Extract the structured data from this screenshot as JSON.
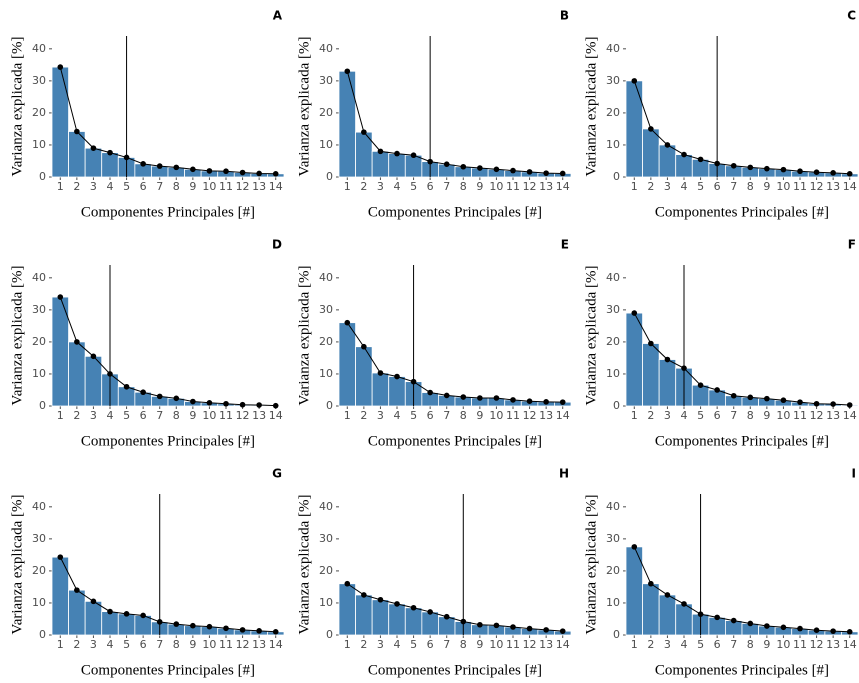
{
  "chart_data": [
    {
      "type": "bar",
      "title": "A",
      "xlabel": "Componentes Principales [#]",
      "ylabel": "Varianza explicada [%]",
      "x": [
        1,
        2,
        3,
        4,
        5,
        6,
        7,
        8,
        9,
        10,
        11,
        12,
        13,
        14
      ],
      "values": [
        34.3,
        14.2,
        9,
        7.6,
        6.1,
        4.1,
        3.4,
        3.0,
        2.4,
        1.9,
        1.8,
        1.4,
        1.1,
        1.0
      ],
      "color": "#4682b4",
      "xlim": [
        0.5,
        14.5
      ],
      "xticks": [
        1,
        2,
        3,
        4,
        5,
        6,
        7,
        8,
        9,
        10,
        11,
        12,
        13,
        14
      ],
      "ylim": [
        0,
        44
      ],
      "yticks": [
        0,
        10,
        20,
        30,
        40
      ],
      "vline": 5
    },
    {
      "type": "bar",
      "title": "B",
      "xlabel": "Componentes Principales [#]",
      "ylabel": "Varianza explicada [%]",
      "x": [
        1,
        2,
        3,
        4,
        5,
        6,
        7,
        8,
        9,
        10,
        11,
        12,
        13,
        14
      ],
      "values": [
        33,
        14,
        8,
        7.3,
        6.8,
        4.8,
        4.0,
        3.2,
        2.8,
        2.4,
        2.0,
        1.6,
        1.2,
        1.1
      ],
      "color": "#4682b4",
      "xlim": [
        0.5,
        14.5
      ],
      "xticks": [
        1,
        2,
        3,
        4,
        5,
        6,
        7,
        8,
        9,
        10,
        11,
        12,
        13,
        14
      ],
      "ylim": [
        0,
        44
      ],
      "yticks": [
        0,
        10,
        20,
        30,
        40
      ],
      "vline": 6
    },
    {
      "type": "bar",
      "title": "C",
      "xlabel": "Componentes Principales [#]",
      "ylabel": "Varianza explicada [%]",
      "x": [
        1,
        2,
        3,
        4,
        5,
        6,
        7,
        8,
        9,
        10,
        11,
        12,
        13,
        14
      ],
      "values": [
        30,
        15,
        10,
        7,
        5.5,
        4.2,
        3.5,
        3.0,
        2.6,
        2.3,
        1.8,
        1.5,
        1.3,
        1.0
      ],
      "color": "#4682b4",
      "xlim": [
        0.5,
        14.5
      ],
      "xticks": [
        1,
        2,
        3,
        4,
        5,
        6,
        7,
        8,
        9,
        10,
        11,
        12,
        13,
        14
      ],
      "ylim": [
        0,
        44
      ],
      "yticks": [
        0,
        10,
        20,
        30,
        40
      ],
      "vline": 6
    },
    {
      "type": "bar",
      "title": "D",
      "xlabel": "Componentes Principales [#]",
      "ylabel": "Varianza explicada [%]",
      "x": [
        1,
        2,
        3,
        4,
        5,
        6,
        7,
        8,
        9,
        10,
        11,
        12,
        13,
        14
      ],
      "values": [
        34,
        20,
        15.5,
        10,
        6,
        4.3,
        3,
        2.4,
        1.4,
        1.0,
        0.7,
        0.4,
        0.3,
        0.1
      ],
      "color": "#4682b4",
      "xlim": [
        0.5,
        14.5
      ],
      "xticks": [
        1,
        2,
        3,
        4,
        5,
        6,
        7,
        8,
        9,
        10,
        11,
        12,
        13,
        14
      ],
      "ylim": [
        0,
        44
      ],
      "yticks": [
        0,
        10,
        20,
        30,
        40
      ],
      "vline": 4
    },
    {
      "type": "bar",
      "title": "E",
      "xlabel": "Componentes Principales [#]",
      "ylabel": "Varianza explicada [%]",
      "x": [
        1,
        2,
        3,
        4,
        5,
        6,
        7,
        8,
        9,
        10,
        11,
        12,
        13,
        14
      ],
      "values": [
        26,
        18.5,
        10.3,
        9.2,
        7.6,
        4.2,
        3.3,
        2.8,
        2.5,
        2.5,
        1.9,
        1.5,
        1.3,
        1.2
      ],
      "color": "#4682b4",
      "xlim": [
        0.5,
        14.5
      ],
      "xticks": [
        1,
        2,
        3,
        4,
        5,
        6,
        7,
        8,
        9,
        10,
        11,
        12,
        13,
        14
      ],
      "ylim": [
        0,
        44
      ],
      "yticks": [
        0,
        10,
        20,
        30,
        40
      ],
      "vline": 5
    },
    {
      "type": "bar",
      "title": "F",
      "xlabel": "Componentes Principales [#]",
      "ylabel": "Varianza explicada [%]",
      "x": [
        1,
        2,
        3,
        4,
        5,
        6,
        7,
        8,
        9,
        10,
        11,
        12,
        13,
        14
      ],
      "values": [
        29,
        19.5,
        14.5,
        11.8,
        6.5,
        5.0,
        3.2,
        2.7,
        2.3,
        1.8,
        1.2,
        0.7,
        0.6,
        0.3
      ],
      "color": "#4682b4",
      "xlim": [
        0.5,
        14.5
      ],
      "xticks": [
        1,
        2,
        3,
        4,
        5,
        6,
        7,
        8,
        9,
        10,
        11,
        12,
        13,
        14
      ],
      "ylim": [
        0,
        44
      ],
      "yticks": [
        0,
        10,
        20,
        30,
        40
      ],
      "vline": 4
    },
    {
      "type": "bar",
      "title": "G",
      "xlabel": "Componentes Principales [#]",
      "ylabel": "Varianza explicada [%]",
      "x": [
        1,
        2,
        3,
        4,
        5,
        6,
        7,
        8,
        9,
        10,
        11,
        12,
        13,
        14
      ],
      "values": [
        24.3,
        14,
        10.5,
        7.3,
        6.6,
        6.1,
        4.1,
        3.4,
        2.9,
        2.6,
        2.1,
        1.6,
        1.3,
        1.0
      ],
      "color": "#4682b4",
      "xlim": [
        0.5,
        14.5
      ],
      "xticks": [
        1,
        2,
        3,
        4,
        5,
        6,
        7,
        8,
        9,
        10,
        11,
        12,
        13,
        14
      ],
      "ylim": [
        0,
        44
      ],
      "yticks": [
        0,
        10,
        20,
        30,
        40
      ],
      "vline": 7
    },
    {
      "type": "bar",
      "title": "H",
      "xlabel": "Componentes Principales [#]",
      "ylabel": "Varianza explicada [%]",
      "x": [
        1,
        2,
        3,
        4,
        5,
        6,
        7,
        8,
        9,
        10,
        11,
        12,
        13,
        14
      ],
      "values": [
        16,
        12.5,
        11,
        9.7,
        8.5,
        7.2,
        5.7,
        4.2,
        3.2,
        3.0,
        2.5,
        2.0,
        1.6,
        1.2
      ],
      "color": "#4682b4",
      "xlim": [
        0.5,
        14.5
      ],
      "xticks": [
        1,
        2,
        3,
        4,
        5,
        6,
        7,
        8,
        9,
        10,
        11,
        12,
        13,
        14
      ],
      "ylim": [
        0,
        44
      ],
      "yticks": [
        0,
        10,
        20,
        30,
        40
      ],
      "vline": 8
    },
    {
      "type": "bar",
      "title": "I",
      "xlabel": "Componentes Principales [#]",
      "ylabel": "Varianza explicada [%]",
      "x": [
        1,
        2,
        3,
        4,
        5,
        6,
        7,
        8,
        9,
        10,
        11,
        12,
        13,
        14
      ],
      "values": [
        27.5,
        16,
        12.5,
        9.7,
        6.5,
        5.5,
        4.5,
        3.6,
        2.8,
        2.4,
        2.0,
        1.5,
        1.2,
        1.0
      ],
      "color": "#4682b4",
      "xlim": [
        0.5,
        14.5
      ],
      "xticks": [
        1,
        2,
        3,
        4,
        5,
        6,
        7,
        8,
        9,
        10,
        11,
        12,
        13,
        14
      ],
      "ylim": [
        0,
        44
      ],
      "yticks": [
        0,
        10,
        20,
        30,
        40
      ],
      "vline": 5
    }
  ]
}
